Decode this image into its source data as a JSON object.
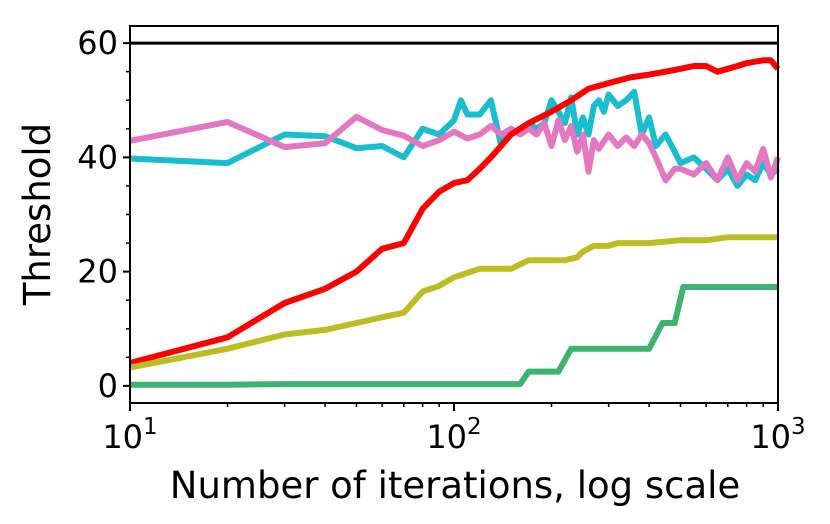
{
  "chart_data": {
    "type": "line",
    "xlabel": "Number of iterations, log scale",
    "ylabel": "Threshold",
    "xscale": "log",
    "xlim": [
      10,
      1000
    ],
    "ylim": [
      -3,
      63
    ],
    "grid": false,
    "legend": "none",
    "x_ticks": [
      {
        "value": 10,
        "base": "10",
        "exp": "1"
      },
      {
        "value": 100,
        "base": "10",
        "exp": "2"
      },
      {
        "value": 1000,
        "base": "10",
        "exp": "3"
      }
    ],
    "y_ticks": [
      0,
      20,
      40,
      60
    ],
    "y_minor_ticks": [
      5,
      10,
      15,
      25,
      30,
      35,
      45,
      50,
      55
    ],
    "reference_lines": [
      {
        "y": 60,
        "color": "#000000"
      }
    ],
    "series": [
      {
        "color": "#17becf",
        "points": [
          [
            10,
            39.8
          ],
          [
            20,
            39.0
          ],
          [
            30,
            44.0
          ],
          [
            40,
            43.7
          ],
          [
            50,
            41.6
          ],
          [
            60,
            42.0
          ],
          [
            70,
            40.0
          ],
          [
            80,
            45.0
          ],
          [
            90,
            44.0
          ],
          [
            100,
            46.5
          ],
          [
            105,
            50.0
          ],
          [
            110,
            47.5
          ],
          [
            120,
            47.5
          ],
          [
            130,
            50.0
          ],
          [
            140,
            42.0
          ],
          [
            150,
            45.0
          ],
          [
            160,
            44.0
          ],
          [
            170,
            46.0
          ],
          [
            180,
            45.0
          ],
          [
            190,
            46.0
          ],
          [
            200,
            50.0
          ],
          [
            210,
            48.0
          ],
          [
            220,
            46.0
          ],
          [
            230,
            50.5
          ],
          [
            240,
            44.0
          ],
          [
            250,
            47.0
          ],
          [
            260,
            44.0
          ],
          [
            270,
            49.0
          ],
          [
            280,
            50.0
          ],
          [
            290,
            48.0
          ],
          [
            300,
            51.0
          ],
          [
            320,
            49.0
          ],
          [
            340,
            50.0
          ],
          [
            360,
            51.5
          ],
          [
            380,
            44.0
          ],
          [
            400,
            47.0
          ],
          [
            420,
            42.0
          ],
          [
            450,
            44.0
          ],
          [
            480,
            41.0
          ],
          [
            500,
            39.0
          ],
          [
            550,
            40.0
          ],
          [
            600,
            38.0
          ],
          [
            650,
            36.0
          ],
          [
            700,
            38.0
          ],
          [
            750,
            35.0
          ],
          [
            800,
            37.0
          ],
          [
            850,
            36.0
          ],
          [
            900,
            39.0
          ],
          [
            950,
            37.0
          ],
          [
            1000,
            38.0
          ]
        ]
      },
      {
        "color": "#e377c2",
        "points": [
          [
            10,
            42.9
          ],
          [
            20,
            46.2
          ],
          [
            30,
            41.8
          ],
          [
            40,
            42.5
          ],
          [
            50,
            47.1
          ],
          [
            60,
            44.8
          ],
          [
            70,
            43.8
          ],
          [
            80,
            42.0
          ],
          [
            90,
            43.0
          ],
          [
            100,
            44.5
          ],
          [
            110,
            43.3
          ],
          [
            120,
            44.0
          ],
          [
            130,
            45.5
          ],
          [
            140,
            44.0
          ],
          [
            150,
            45.0
          ],
          [
            160,
            44.0
          ],
          [
            170,
            45.0
          ],
          [
            180,
            44.0
          ],
          [
            190,
            46.0
          ],
          [
            200,
            42.0
          ],
          [
            210,
            46.5
          ],
          [
            220,
            43.0
          ],
          [
            230,
            45.5
          ],
          [
            240,
            41.0
          ],
          [
            250,
            44.0
          ],
          [
            260,
            37.5
          ],
          [
            270,
            43.0
          ],
          [
            280,
            41.5
          ],
          [
            300,
            44.0
          ],
          [
            320,
            42.0
          ],
          [
            340,
            43.5
          ],
          [
            360,
            42.0
          ],
          [
            380,
            44.0
          ],
          [
            400,
            42.5
          ],
          [
            420,
            40.0
          ],
          [
            450,
            36.0
          ],
          [
            480,
            38.0
          ],
          [
            500,
            38.0
          ],
          [
            550,
            37.0
          ],
          [
            600,
            39.0
          ],
          [
            650,
            36.0
          ],
          [
            700,
            40.0
          ],
          [
            750,
            36.0
          ],
          [
            800,
            39.0
          ],
          [
            850,
            37.5
          ],
          [
            900,
            41.5
          ],
          [
            950,
            36.5
          ],
          [
            1000,
            40.0
          ]
        ]
      },
      {
        "color": "#ff0000",
        "points": [
          [
            10,
            4.0
          ],
          [
            20,
            8.5
          ],
          [
            30,
            14.5
          ],
          [
            40,
            17.0
          ],
          [
            50,
            20.0
          ],
          [
            60,
            24.0
          ],
          [
            70,
            25.0
          ],
          [
            80,
            31.0
          ],
          [
            90,
            34.0
          ],
          [
            100,
            35.5
          ],
          [
            110,
            36.0
          ],
          [
            120,
            38.0
          ],
          [
            130,
            40.0
          ],
          [
            150,
            44.0
          ],
          [
            170,
            46.0
          ],
          [
            200,
            48.0
          ],
          [
            230,
            50.0
          ],
          [
            260,
            52.0
          ],
          [
            300,
            53.0
          ],
          [
            350,
            54.0
          ],
          [
            400,
            54.5
          ],
          [
            450,
            55.0
          ],
          [
            500,
            55.5
          ],
          [
            550,
            56.0
          ],
          [
            600,
            56.0
          ],
          [
            650,
            55.0
          ],
          [
            700,
            55.5
          ],
          [
            750,
            56.0
          ],
          [
            800,
            56.5
          ],
          [
            900,
            57.0
          ],
          [
            950,
            57.0
          ],
          [
            1000,
            55.5
          ]
        ]
      },
      {
        "color": "#bcbd22",
        "points": [
          [
            10,
            3.2
          ],
          [
            20,
            6.5
          ],
          [
            30,
            9.0
          ],
          [
            40,
            9.8
          ],
          [
            50,
            11.0
          ],
          [
            60,
            12.0
          ],
          [
            70,
            12.8
          ],
          [
            80,
            16.5
          ],
          [
            90,
            17.5
          ],
          [
            100,
            19.0
          ],
          [
            120,
            20.5
          ],
          [
            150,
            20.5
          ],
          [
            170,
            22.0
          ],
          [
            220,
            22.0
          ],
          [
            240,
            22.5
          ],
          [
            250,
            23.5
          ],
          [
            270,
            24.5
          ],
          [
            300,
            24.5
          ],
          [
            320,
            25.0
          ],
          [
            400,
            25.0
          ],
          [
            500,
            25.5
          ],
          [
            600,
            25.5
          ],
          [
            700,
            26.0
          ],
          [
            800,
            26.0
          ],
          [
            1000,
            26.0
          ]
        ]
      },
      {
        "color": "#3cb371",
        "points": [
          [
            10,
            0.2
          ],
          [
            20,
            0.2
          ],
          [
            30,
            0.3
          ],
          [
            160,
            0.3
          ],
          [
            170,
            2.5
          ],
          [
            210,
            2.5
          ],
          [
            230,
            6.5
          ],
          [
            400,
            6.5
          ],
          [
            440,
            11.0
          ],
          [
            480,
            11.0
          ],
          [
            510,
            17.3
          ],
          [
            1000,
            17.3
          ]
        ]
      }
    ]
  }
}
